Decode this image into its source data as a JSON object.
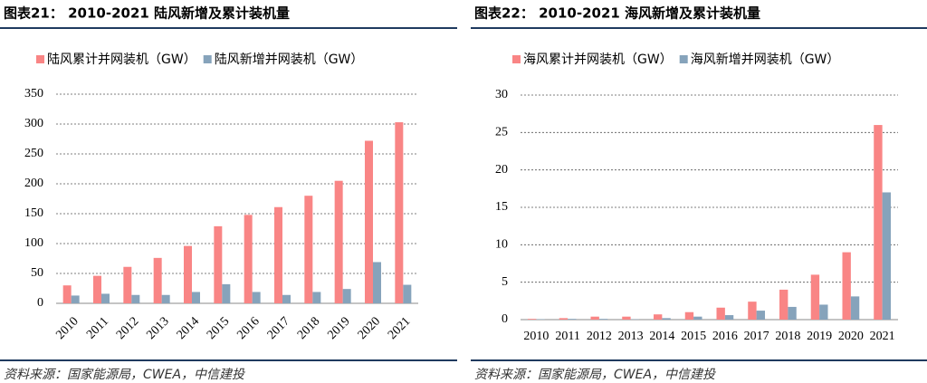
{
  "chart_data": [
    {
      "type": "bar",
      "title": "图表21： 2010-2021 陆风新增及累计装机量",
      "categories": [
        "2010",
        "2011",
        "2012",
        "2013",
        "2014",
        "2015",
        "2016",
        "2017",
        "2018",
        "2019",
        "2020",
        "2021"
      ],
      "series": [
        {
          "name": "陆风累计并网装机（GW）",
          "color": "#f98585",
          "values": [
            30,
            46,
            61,
            76,
            96,
            129,
            148,
            161,
            180,
            205,
            272,
            303
          ]
        },
        {
          "name": "陆风新增并网装机（GW）",
          "color": "#86a3bb",
          "values": [
            13,
            16,
            14,
            14,
            19,
            32,
            19,
            14,
            19,
            24,
            69,
            31
          ]
        }
      ],
      "ylim": [
        0,
        350
      ],
      "yticks": [
        0,
        50,
        100,
        150,
        200,
        250,
        300,
        350
      ],
      "grid": true,
      "source": "资料来源：国家能源局，CWEA，中信建投"
    },
    {
      "type": "bar",
      "title": "图表22： 2010-2021 海风新增及累计装机量",
      "categories": [
        "2010",
        "2011",
        "2012",
        "2013",
        "2014",
        "2015",
        "2016",
        "2017",
        "2018",
        "2019",
        "2020",
        "2021"
      ],
      "series": [
        {
          "name": "海风累计并网装机（GW）",
          "color": "#f98585",
          "values": [
            0.1,
            0.2,
            0.4,
            0.4,
            0.7,
            1.0,
            1.6,
            2.4,
            4.0,
            6.0,
            9.0,
            26.0
          ]
        },
        {
          "name": "海风新增并网装机（GW）",
          "color": "#86a3bb",
          "values": [
            0.05,
            0.1,
            0.1,
            0.04,
            0.2,
            0.4,
            0.6,
            1.2,
            1.7,
            2.0,
            3.1,
            17.0
          ]
        }
      ],
      "ylim": [
        0,
        30
      ],
      "yticks": [
        0,
        5,
        10,
        15,
        20,
        25,
        30
      ],
      "grid": true,
      "source": "资料来源：国家能源局，CWEA，中信建投"
    }
  ]
}
